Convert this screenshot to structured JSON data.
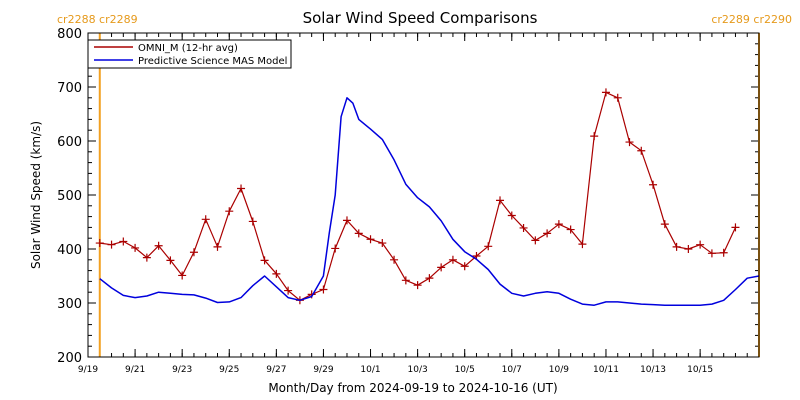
{
  "chart_data": {
    "type": "line",
    "title": "Solar Wind Speed Comparisons",
    "xlabel": "Month/Day from 2024-09-19 to 2024-10-16 (UT)",
    "ylabel": "Solar Wind Speed (km/s)",
    "ylim": [
      200,
      800
    ],
    "xlim": [
      "2024-09-19",
      "2024-10-17T12:00"
    ],
    "yticks": [
      200,
      300,
      400,
      500,
      600,
      700,
      800
    ],
    "xticks": [
      {
        "date": "2024-09-19",
        "label": "9/19"
      },
      {
        "date": "2024-09-21",
        "label": "9/21"
      },
      {
        "date": "2024-09-23",
        "label": "9/23"
      },
      {
        "date": "2024-09-25",
        "label": "9/25"
      },
      {
        "date": "2024-09-27",
        "label": "9/27"
      },
      {
        "date": "2024-09-29",
        "label": "9/29"
      },
      {
        "date": "2024-10-01",
        "label": "10/1"
      },
      {
        "date": "2024-10-03",
        "label": "10/3"
      },
      {
        "date": "2024-10-05",
        "label": "10/5"
      },
      {
        "date": "2024-10-07",
        "label": "10/7"
      },
      {
        "date": "2024-10-09",
        "label": "10/9"
      },
      {
        "date": "2024-10-11",
        "label": "10/11"
      },
      {
        "date": "2024-10-13",
        "label": "10/13"
      },
      {
        "date": "2024-10-15",
        "label": "10/15"
      }
    ],
    "carrington_markers": [
      {
        "date": "2024-09-19T12:00",
        "label": "cr2288 cr2289",
        "label_side": "left"
      },
      {
        "date": "2024-10-17T12:00",
        "label": "cr2289 cr2290",
        "label_side": "right"
      }
    ],
    "legend": {
      "placement": "top-left"
    },
    "colors": {
      "omni": "#aa0000",
      "model": "#0000dd",
      "carrington": "#f2a020"
    },
    "series": [
      {
        "name": "OMNI_M (12-hr avg)",
        "key": "omni",
        "markers": "plus",
        "points": [
          [
            "2024-09-19T12:00",
            411
          ],
          [
            "2024-09-20T00:00",
            408
          ],
          [
            "2024-09-20T12:00",
            414
          ],
          [
            "2024-09-21T00:00",
            402
          ],
          [
            "2024-09-21T12:00",
            384
          ],
          [
            "2024-09-22T00:00",
            406
          ],
          [
            "2024-09-22T12:00",
            379
          ],
          [
            "2024-09-23T00:00",
            351
          ],
          [
            "2024-09-23T12:00",
            394
          ],
          [
            "2024-09-24T00:00",
            455
          ],
          [
            "2024-09-24T12:00",
            404
          ],
          [
            "2024-09-25T00:00",
            470
          ],
          [
            "2024-09-25T12:00",
            512
          ],
          [
            "2024-09-26T00:00",
            451
          ],
          [
            "2024-09-26T12:00",
            379
          ],
          [
            "2024-09-27T00:00",
            354
          ],
          [
            "2024-09-27T12:00",
            323
          ],
          [
            "2024-09-28T00:00",
            305
          ],
          [
            "2024-09-28T12:00",
            316
          ],
          [
            "2024-09-29T00:00",
            325
          ],
          [
            "2024-09-29T12:00",
            401
          ],
          [
            "2024-09-30T00:00",
            453
          ],
          [
            "2024-09-30T12:00",
            429
          ],
          [
            "2024-10-01T00:00",
            418
          ],
          [
            "2024-10-01T12:00",
            411
          ],
          [
            "2024-10-02T00:00",
            380
          ],
          [
            "2024-10-02T12:00",
            342
          ],
          [
            "2024-10-03T00:00",
            333
          ],
          [
            "2024-10-03T12:00",
            346
          ],
          [
            "2024-10-04T00:00",
            366
          ],
          [
            "2024-10-04T12:00",
            380
          ],
          [
            "2024-10-05T00:00",
            368
          ],
          [
            "2024-10-05T12:00",
            387
          ],
          [
            "2024-10-06T00:00",
            405
          ],
          [
            "2024-10-06T12:00",
            490
          ],
          [
            "2024-10-07T00:00",
            462
          ],
          [
            "2024-10-07T12:00",
            439
          ],
          [
            "2024-10-08T00:00",
            416
          ],
          [
            "2024-10-08T12:00",
            429
          ],
          [
            "2024-10-09T00:00",
            446
          ],
          [
            "2024-10-09T12:00",
            436
          ],
          [
            "2024-10-10T00:00",
            409
          ],
          [
            "2024-10-10T12:00",
            609
          ],
          [
            "2024-10-11T00:00",
            690
          ],
          [
            "2024-10-11T12:00",
            680
          ],
          [
            "2024-10-12T00:00",
            598
          ],
          [
            "2024-10-12T12:00",
            582
          ],
          [
            "2024-10-13T00:00",
            519
          ],
          [
            "2024-10-13T12:00",
            446
          ],
          [
            "2024-10-14T00:00",
            404
          ],
          [
            "2024-10-14T12:00",
            400
          ],
          [
            "2024-10-15T00:00",
            408
          ],
          [
            "2024-10-15T12:00",
            392
          ],
          [
            "2024-10-16T00:00",
            393
          ],
          [
            "2024-10-16T12:00",
            440
          ]
        ]
      },
      {
        "name": "Predictive Science MAS Model",
        "key": "model",
        "markers": "none",
        "points": [
          [
            "2024-09-19T12:00",
            345
          ],
          [
            "2024-09-20T00:00",
            328
          ],
          [
            "2024-09-20T12:00",
            314
          ],
          [
            "2024-09-21T00:00",
            310
          ],
          [
            "2024-09-21T12:00",
            313
          ],
          [
            "2024-09-22T00:00",
            320
          ],
          [
            "2024-09-22T12:00",
            318
          ],
          [
            "2024-09-23T00:00",
            316
          ],
          [
            "2024-09-23T12:00",
            315
          ],
          [
            "2024-09-24T00:00",
            309
          ],
          [
            "2024-09-24T12:00",
            301
          ],
          [
            "2024-09-25T00:00",
            302
          ],
          [
            "2024-09-25T12:00",
            310
          ],
          [
            "2024-09-26T00:00",
            332
          ],
          [
            "2024-09-26T12:00",
            350
          ],
          [
            "2024-09-27T00:00",
            330
          ],
          [
            "2024-09-27T12:00",
            310
          ],
          [
            "2024-09-28T00:00",
            305
          ],
          [
            "2024-09-28T12:00",
            312
          ],
          [
            "2024-09-29T00:00",
            350
          ],
          [
            "2024-09-29T06:00",
            430
          ],
          [
            "2024-09-29T12:00",
            500
          ],
          [
            "2024-09-29T18:00",
            645
          ],
          [
            "2024-09-30T00:00",
            680
          ],
          [
            "2024-09-30T06:00",
            670
          ],
          [
            "2024-09-30T12:00",
            640
          ],
          [
            "2024-10-01T00:00",
            622
          ],
          [
            "2024-10-01T12:00",
            603
          ],
          [
            "2024-10-02T00:00",
            565
          ],
          [
            "2024-10-02T12:00",
            520
          ],
          [
            "2024-10-03T00:00",
            495
          ],
          [
            "2024-10-03T12:00",
            478
          ],
          [
            "2024-10-04T00:00",
            452
          ],
          [
            "2024-10-04T12:00",
            418
          ],
          [
            "2024-10-05T00:00",
            395
          ],
          [
            "2024-10-05T12:00",
            381
          ],
          [
            "2024-10-06T00:00",
            362
          ],
          [
            "2024-10-06T12:00",
            335
          ],
          [
            "2024-10-07T00:00",
            318
          ],
          [
            "2024-10-07T12:00",
            313
          ],
          [
            "2024-10-08T00:00",
            318
          ],
          [
            "2024-10-08T12:00",
            321
          ],
          [
            "2024-10-09T00:00",
            318
          ],
          [
            "2024-10-09T12:00",
            307
          ],
          [
            "2024-10-10T00:00",
            298
          ],
          [
            "2024-10-10T12:00",
            296
          ],
          [
            "2024-10-11T00:00",
            302
          ],
          [
            "2024-10-11T12:00",
            302
          ],
          [
            "2024-10-12T00:00",
            300
          ],
          [
            "2024-10-12T12:00",
            298
          ],
          [
            "2024-10-13T00:00",
            297
          ],
          [
            "2024-10-13T12:00",
            296
          ],
          [
            "2024-10-14T00:00",
            296
          ],
          [
            "2024-10-14T12:00",
            296
          ],
          [
            "2024-10-15T00:00",
            296
          ],
          [
            "2024-10-15T12:00",
            298
          ],
          [
            "2024-10-16T00:00",
            305
          ],
          [
            "2024-10-16T12:00",
            325
          ],
          [
            "2024-10-17T00:00",
            346
          ],
          [
            "2024-10-17T12:00",
            350
          ]
        ]
      }
    ]
  }
}
